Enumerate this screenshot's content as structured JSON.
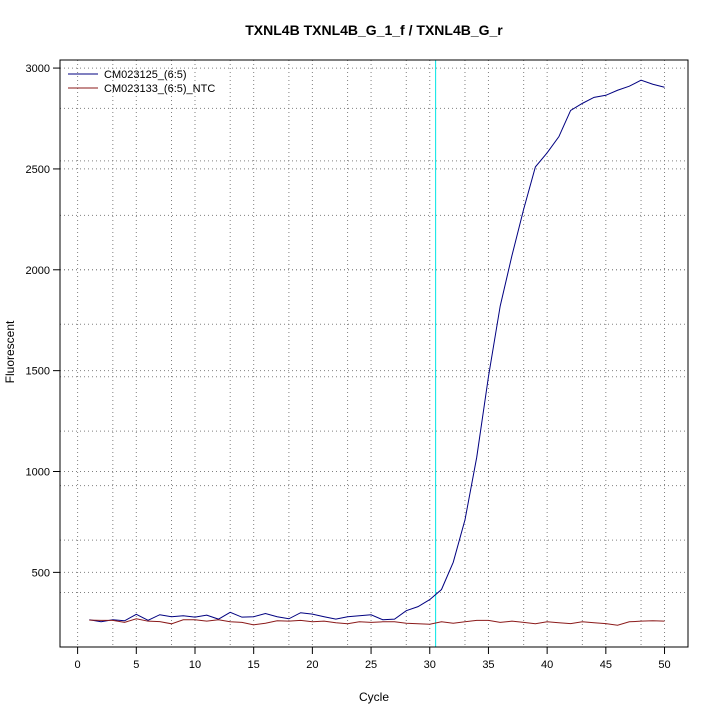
{
  "chart_data": {
    "type": "line",
    "title": "TXNL4B  TXNL4B_G_1_f / TXNL4B_G_r",
    "xlabel": "Cycle",
    "ylabel": "Fluorescent",
    "xlim": [
      -1.5,
      52
    ],
    "ylim": [
      130,
      3040
    ],
    "xticks": [
      0,
      5,
      10,
      15,
      20,
      25,
      30,
      35,
      40,
      45,
      50
    ],
    "yticks": [
      500,
      1000,
      1500,
      2000,
      2500,
      3000
    ],
    "x_grid": [
      3,
      8,
      13,
      18,
      23,
      28,
      33,
      38,
      43,
      48
    ],
    "y_grid": [
      400,
      660,
      930,
      1200,
      1470,
      1730,
      2000,
      2270,
      2540,
      2800
    ],
    "grid": true,
    "threshold_x": 30.5,
    "threshold_color": "#00e5e5",
    "legend_position": "top-left",
    "series": [
      {
        "name": "CM023125_(6:5)",
        "color": "#000080",
        "x": [
          1,
          2,
          3,
          4,
          5,
          6,
          7,
          8,
          9,
          10,
          11,
          12,
          13,
          14,
          15,
          16,
          17,
          18,
          19,
          20,
          21,
          22,
          23,
          24,
          25,
          26,
          27,
          28,
          29,
          30,
          31,
          32,
          33,
          34,
          35,
          36,
          37,
          38,
          39,
          40,
          41,
          42,
          43,
          44,
          45,
          46,
          47,
          48,
          49,
          50
        ],
        "values": [
          265,
          255,
          265,
          260,
          292,
          262,
          290,
          280,
          285,
          278,
          288,
          268,
          302,
          278,
          280,
          296,
          280,
          270,
          300,
          293,
          280,
          268,
          280,
          285,
          290,
          265,
          268,
          310,
          330,
          365,
          415,
          550,
          760,
          1070,
          1470,
          1820,
          2070,
          2300,
          2510,
          2580,
          2660,
          2790,
          2825,
          2855,
          2865,
          2890,
          2910,
          2940,
          2920,
          2905
        ]
      },
      {
        "name": "CM023133_(6:5)_NTC",
        "color": "#8b1a1a",
        "x": [
          1,
          2,
          3,
          4,
          5,
          6,
          7,
          8,
          9,
          10,
          11,
          12,
          13,
          14,
          15,
          16,
          17,
          18,
          19,
          20,
          21,
          22,
          23,
          24,
          25,
          26,
          27,
          28,
          29,
          30,
          31,
          32,
          33,
          34,
          35,
          36,
          37,
          38,
          39,
          40,
          41,
          42,
          43,
          44,
          45,
          46,
          47,
          48,
          49,
          50
        ],
        "values": [
          263,
          262,
          262,
          252,
          270,
          258,
          256,
          245,
          265,
          265,
          258,
          265,
          255,
          252,
          240,
          248,
          260,
          258,
          262,
          255,
          258,
          250,
          245,
          255,
          252,
          255,
          255,
          248,
          245,
          243,
          255,
          248,
          255,
          262,
          262,
          252,
          258,
          252,
          245,
          255,
          250,
          246,
          255,
          250,
          246,
          238,
          255,
          258,
          260,
          258
        ]
      }
    ]
  }
}
